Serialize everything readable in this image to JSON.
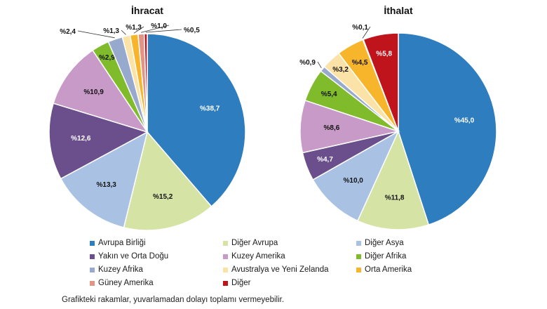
{
  "chart_data": [
    {
      "type": "pie",
      "title": "İhracat",
      "slices": [
        {
          "name": "Avrupa Birliği",
          "value": 38.7,
          "label": "%38,7"
        },
        {
          "name": "Diğer Avrupa",
          "value": 15.2,
          "label": "%15,2"
        },
        {
          "name": "Diğer Asya",
          "value": 13.3,
          "label": "%13,3"
        },
        {
          "name": "Yakın ve Orta Doğu",
          "value": 12.6,
          "label": "%12,6"
        },
        {
          "name": "Kuzey Amerika",
          "value": 10.9,
          "label": "%10,9"
        },
        {
          "name": "Diğer Afrika",
          "value": 2.9,
          "label": "%2,9"
        },
        {
          "name": "Kuzey Afrika",
          "value": 2.4,
          "label": "%2,4"
        },
        {
          "name": "Avustralya ve Yeni Zelanda",
          "value": 1.3,
          "label": "%1,3"
        },
        {
          "name": "Orta Amerika",
          "value": 1.3,
          "label": "%1,3"
        },
        {
          "name": "Güney Amerika",
          "value": 1.0,
          "label": "%1,0"
        },
        {
          "name": "Diğer",
          "value": 0.5,
          "label": "%0,5"
        }
      ]
    },
    {
      "type": "pie",
      "title": "İthalat",
      "slices": [
        {
          "name": "Avrupa Birliği",
          "value": 45.0,
          "label": "%45,0"
        },
        {
          "name": "Diğer Avrupa",
          "value": 11.8,
          "label": "%11,8"
        },
        {
          "name": "Diğer Asya",
          "value": 10.0,
          "label": "%10,0"
        },
        {
          "name": "Yakın ve Orta Doğu",
          "value": 4.7,
          "label": "%4,7"
        },
        {
          "name": "Kuzey Amerika",
          "value": 8.6,
          "label": "%8,6"
        },
        {
          "name": "Diğer Afrika",
          "value": 5.4,
          "label": "%5,4"
        },
        {
          "name": "Kuzey Afrika",
          "value": 0.9,
          "label": "%0,9"
        },
        {
          "name": "Avustralya ve Yeni Zelanda",
          "value": 3.2,
          "label": "%3,2"
        },
        {
          "name": "Orta Amerika",
          "value": 4.5,
          "label": "%4,5"
        },
        {
          "name": "Güney Amerika",
          "value": 0.1,
          "label": "%0,1"
        },
        {
          "name": "Diğer",
          "value": 5.8,
          "label": "%5,8"
        }
      ]
    }
  ],
  "legend": [
    {
      "name": "Avrupa Birliği",
      "color": "#2e7ebf"
    },
    {
      "name": "Diğer Avrupa",
      "color": "#d5e3a4"
    },
    {
      "name": "Diğer Asya",
      "color": "#a9c2e3"
    },
    {
      "name": "Yakın ve Orta Doğu",
      "color": "#6a4f8c"
    },
    {
      "name": "Kuzey Amerika",
      "color": "#c79ac7"
    },
    {
      "name": "Diğer Afrika",
      "color": "#7fbb2a"
    },
    {
      "name": "Kuzey Afrika",
      "color": "#97a9cc"
    },
    {
      "name": "Avustralya ve Yeni Zelanda",
      "color": "#fbe2a6"
    },
    {
      "name": "Orta Amerika",
      "color": "#f7b52b"
    },
    {
      "name": "Güney Amerika",
      "color": "#e49485"
    },
    {
      "name": "Diğer",
      "color": "#c0141d"
    }
  ],
  "footnote": "Grafikteki rakamlar, yuvarlamadan dolayı toplamı vermeyebilir."
}
